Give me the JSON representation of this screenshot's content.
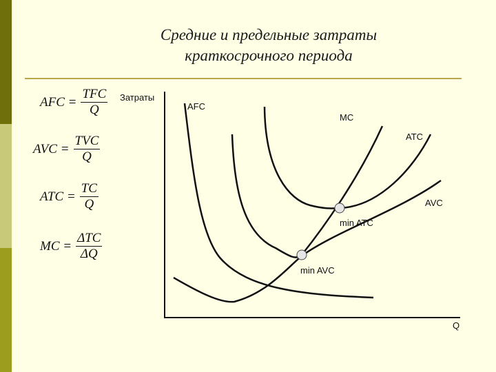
{
  "title": {
    "line1": "Средние и предельные затраты",
    "line2": "краткосрочного периода"
  },
  "formulas": [
    {
      "lhs": "AFC =",
      "num": "TFC",
      "den": "Q"
    },
    {
      "lhs": "AVC =",
      "num": "TVC",
      "den": "Q"
    },
    {
      "lhs": "ATC =",
      "num": "TC",
      "den": "Q"
    },
    {
      "lhs": "MC =",
      "num": "ΔTC",
      "den": "ΔQ"
    }
  ],
  "axes": {
    "y_label": "Затраты",
    "x_label": "Q"
  },
  "curves": {
    "afc": "AFC",
    "mc": "MC",
    "atc": "ATC",
    "avc": "AVC"
  },
  "points": {
    "min_atc": "min ATC",
    "min_avc": "min AVC"
  },
  "colors": {
    "background": "#ffffe6",
    "sidebar_dark": "#6f6f0c",
    "sidebar_light": "#c9c97a",
    "sidebar_mid": "#9c9c1e",
    "rule": "#b8a64a",
    "curve": "#111111",
    "point_fill": "#e6e6e6"
  }
}
